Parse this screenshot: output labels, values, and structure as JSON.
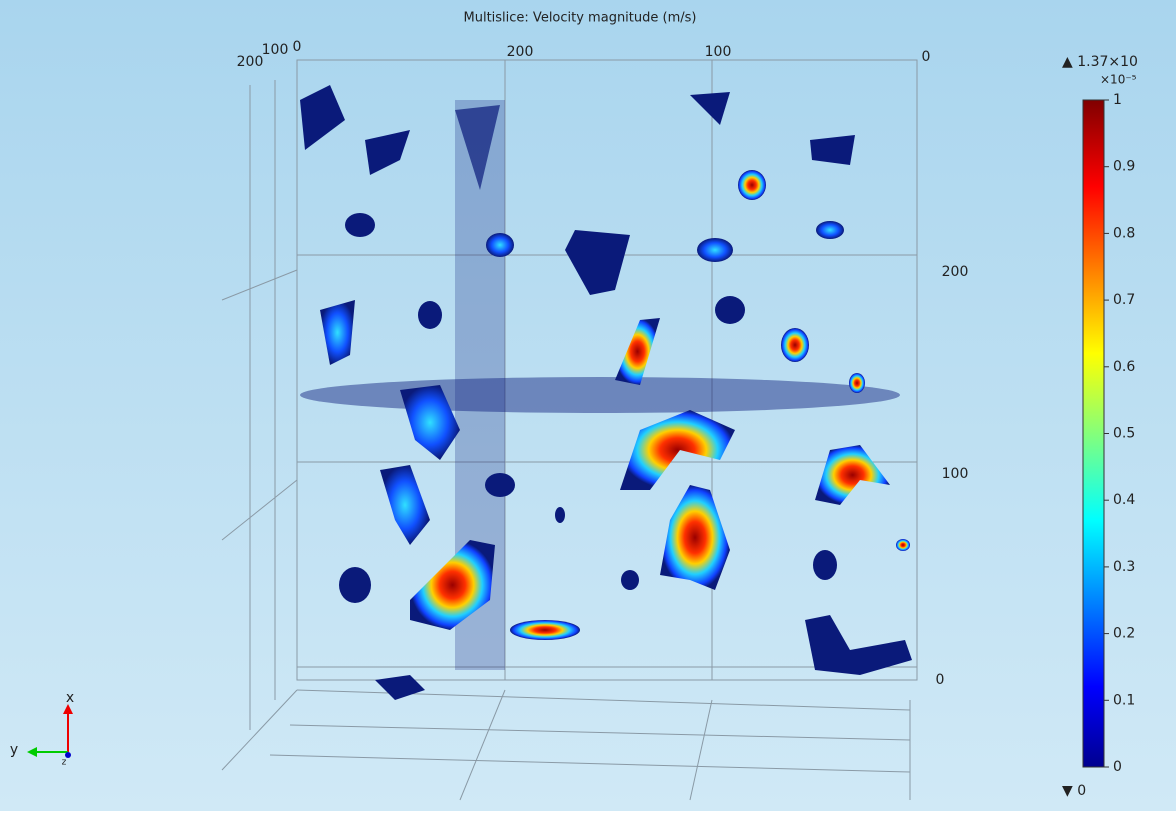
{
  "title": "Multislice: Velocity magnitude (m/s)",
  "axes": {
    "top": [
      "200",
      "100",
      "0"
    ],
    "left": [
      "200",
      "100",
      "0"
    ],
    "right": [
      "200",
      "100",
      "0"
    ]
  },
  "colorbar": {
    "max_label": "▲ 1.37×10",
    "multiplier": "×10⁻⁵",
    "ticks": [
      0,
      0.1,
      0.2,
      0.3,
      0.4,
      0.5,
      0.6,
      0.7,
      0.8,
      0.9,
      1
    ],
    "min_label": "▼ 0"
  },
  "triad": {
    "x": "x",
    "y": "y",
    "z": "z"
  }
}
